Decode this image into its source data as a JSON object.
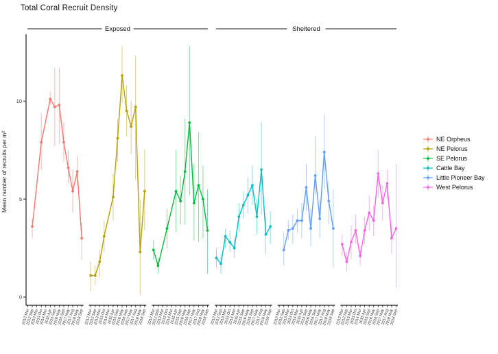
{
  "page": {
    "title": "Total Coral Recruit Density"
  },
  "chart_data": {
    "type": "line",
    "title": "Total Coral Recruit Density",
    "xlabel": "",
    "ylabel": "Mean number of recruits per m²",
    "ylim": [
      0,
      13.5
    ],
    "yticks": [
      0,
      5,
      10
    ],
    "grid": false,
    "error_bars": true,
    "x_tick_labels": [
      "2012 Mar",
      "2012 Sep",
      "2013 Mar",
      "2013 Oct",
      "2014 Mar",
      "2015 Apr",
      "2015 Sep",
      "2016 May",
      "2016 Sep",
      "2017 May",
      "2017 Aug",
      "2018 May",
      "2018 Sep"
    ],
    "facets": [
      {
        "label": "Exposed",
        "series_indexes": [
          0,
          1,
          2
        ]
      },
      {
        "label": "Sheltered",
        "series_indexes": [
          3,
          4,
          5
        ]
      }
    ],
    "legend": {
      "position": "right",
      "entries": [
        "NE Orpheus",
        "NE Pelorus",
        "SE Pelorus",
        "Cattle Bay",
        "Little Pioneer Bay",
        "West Pelorus"
      ]
    },
    "series": [
      {
        "name": "NE Orpheus",
        "color": "#F8766D",
        "facet": "Exposed",
        "points": [
          {
            "t": 1,
            "y": 3.6,
            "lo": 3.0,
            "hi": 4.0
          },
          {
            "t": 3,
            "y": 7.9,
            "lo": 6.5,
            "hi": 9.4
          },
          {
            "t": 5,
            "y": 10.1,
            "lo": 9.8,
            "hi": 10.5
          },
          {
            "t": 6,
            "y": 9.7,
            "lo": 7.7,
            "hi": 11.7
          },
          {
            "t": 7,
            "y": 9.8,
            "lo": 7.8,
            "hi": 11.7
          },
          {
            "t": 8,
            "y": 7.9,
            "lo": 6.9,
            "hi": 8.9
          },
          {
            "t": 9,
            "y": 6.6,
            "lo": 5.8,
            "hi": 7.5
          },
          {
            "t": 10,
            "y": 5.4,
            "lo": 4.3,
            "hi": 6.5
          },
          {
            "t": 11,
            "y": 6.4,
            "lo": 5.7,
            "hi": 7.2
          },
          {
            "t": 12,
            "y": 3.0,
            "lo": 1.9,
            "hi": 3.8
          }
        ]
      },
      {
        "name": "NE Pelorus",
        "color": "#B79F00",
        "facet": "Exposed",
        "points": [
          {
            "t": 0,
            "y": 1.1,
            "lo": 0.3,
            "hi": 1.8
          },
          {
            "t": 1,
            "y": 1.1,
            "lo": 0.6,
            "hi": 1.6
          },
          {
            "t": 2,
            "y": 1.8,
            "lo": 1.0,
            "hi": 2.4
          },
          {
            "t": 3,
            "y": 3.1,
            "lo": 2.3,
            "hi": 3.9
          },
          {
            "t": 5,
            "y": 5.1,
            "lo": 3.9,
            "hi": 6.3
          },
          {
            "t": 6,
            "y": 8.1,
            "lo": 6.9,
            "hi": 9.1
          },
          {
            "t": 7,
            "y": 11.3,
            "lo": 9.9,
            "hi": 12.8
          },
          {
            "t": 8,
            "y": 9.5,
            "lo": 8.2,
            "hi": 10.8
          },
          {
            "t": 9,
            "y": 8.7,
            "lo": 7.3,
            "hi": 10.0
          },
          {
            "t": 10,
            "y": 9.7,
            "lo": 6.0,
            "hi": 12.3
          },
          {
            "t": 11,
            "y": 2.3,
            "lo": 0.1,
            "hi": 5.0
          },
          {
            "t": 12,
            "y": 5.4,
            "lo": 3.4,
            "hi": 7.5
          }
        ]
      },
      {
        "name": "SE Pelorus",
        "color": "#00BA38",
        "facet": "Exposed",
        "points": [
          {
            "t": 0,
            "y": 2.4,
            "lo": 1.9,
            "hi": 2.9
          },
          {
            "t": 1,
            "y": 1.6,
            "lo": 1.2,
            "hi": 2.0
          },
          {
            "t": 3,
            "y": 3.5,
            "lo": 2.5,
            "hi": 4.5
          },
          {
            "t": 5,
            "y": 5.4,
            "lo": 3.3,
            "hi": 7.5
          },
          {
            "t": 6,
            "y": 4.9,
            "lo": 3.7,
            "hi": 6.2
          },
          {
            "t": 7,
            "y": 6.4,
            "lo": 3.7,
            "hi": 9.1
          },
          {
            "t": 8,
            "y": 8.9,
            "lo": 5.2,
            "hi": 12.8
          },
          {
            "t": 9,
            "y": 4.8,
            "lo": 2.9,
            "hi": 6.8
          },
          {
            "t": 10,
            "y": 5.7,
            "lo": 2.8,
            "hi": 8.4
          },
          {
            "t": 11,
            "y": 5.0,
            "lo": 3.0,
            "hi": 6.7
          },
          {
            "t": 12,
            "y": 3.4,
            "lo": 1.2,
            "hi": 5.5
          }
        ]
      },
      {
        "name": "Cattle Bay",
        "color": "#00BFC4",
        "facet": "Sheltered",
        "points": [
          {
            "t": 0,
            "y": 2.0,
            "lo": 1.5,
            "hi": 2.5
          },
          {
            "t": 1,
            "y": 1.7,
            "lo": 1.2,
            "hi": 2.2
          },
          {
            "t": 2,
            "y": 3.1,
            "lo": 2.5,
            "hi": 3.5
          },
          {
            "t": 3,
            "y": 2.8,
            "lo": 2.3,
            "hi": 3.4
          },
          {
            "t": 4,
            "y": 2.5,
            "lo": 2.0,
            "hi": 3.0
          },
          {
            "t": 5,
            "y": 4.1,
            "lo": 3.3,
            "hi": 4.8
          },
          {
            "t": 6,
            "y": 4.7,
            "lo": 4.0,
            "hi": 5.4
          },
          {
            "t": 7,
            "y": 5.2,
            "lo": 4.3,
            "hi": 6.1
          },
          {
            "t": 8,
            "y": 5.7,
            "lo": 4.7,
            "hi": 6.7
          },
          {
            "t": 9,
            "y": 4.1,
            "lo": 3.2,
            "hi": 5.0
          },
          {
            "t": 10,
            "y": 6.5,
            "lo": 4.2,
            "hi": 8.9
          },
          {
            "t": 11,
            "y": 3.2,
            "lo": 2.2,
            "hi": 4.1
          },
          {
            "t": 12,
            "y": 3.6,
            "lo": 2.7,
            "hi": 4.4
          }
        ]
      },
      {
        "name": "Little Pioneer Bay",
        "color": "#619CFF",
        "facet": "Sheltered",
        "points": [
          {
            "t": 1,
            "y": 2.4,
            "lo": 1.6,
            "hi": 3.3
          },
          {
            "t": 2,
            "y": 3.4,
            "lo": 2.9,
            "hi": 3.9
          },
          {
            "t": 3,
            "y": 3.5,
            "lo": 2.7,
            "hi": 4.2
          },
          {
            "t": 4,
            "y": 3.9,
            "lo": 3.3,
            "hi": 4.5
          },
          {
            "t": 5,
            "y": 3.9,
            "lo": 3.0,
            "hi": 4.8
          },
          {
            "t": 6,
            "y": 5.6,
            "lo": 4.4,
            "hi": 6.8
          },
          {
            "t": 7,
            "y": 3.5,
            "lo": 2.6,
            "hi": 4.5
          },
          {
            "t": 8,
            "y": 6.2,
            "lo": 5.2,
            "hi": 8.2
          },
          {
            "t": 9,
            "y": 4.0,
            "lo": 3.0,
            "hi": 5.0
          },
          {
            "t": 10,
            "y": 7.4,
            "lo": 5.5,
            "hi": 9.3
          },
          {
            "t": 11,
            "y": 4.9,
            "lo": 3.7,
            "hi": 5.9
          },
          {
            "t": 12,
            "y": 3.5,
            "lo": 1.5,
            "hi": 5.5
          }
        ]
      },
      {
        "name": "West Pelorus",
        "color": "#F564E3",
        "facet": "Sheltered",
        "points": [
          {
            "t": 0,
            "y": 2.7,
            "lo": 2.1,
            "hi": 3.2
          },
          {
            "t": 1,
            "y": 1.8,
            "lo": 1.3,
            "hi": 2.3
          },
          {
            "t": 2,
            "y": 2.8,
            "lo": 1.9,
            "hi": 3.7
          },
          {
            "t": 3,
            "y": 3.4,
            "lo": 2.7,
            "hi": 4.2
          },
          {
            "t": 4,
            "y": 2.1,
            "lo": 1.6,
            "hi": 2.6
          },
          {
            "t": 5,
            "y": 3.4,
            "lo": 2.7,
            "hi": 4.1
          },
          {
            "t": 6,
            "y": 4.3,
            "lo": 3.4,
            "hi": 5.2
          },
          {
            "t": 7,
            "y": 3.9,
            "lo": 3.1,
            "hi": 4.7
          },
          {
            "t": 8,
            "y": 6.3,
            "lo": 5.1,
            "hi": 7.5
          },
          {
            "t": 9,
            "y": 4.8,
            "lo": 3.9,
            "hi": 5.7
          },
          {
            "t": 10,
            "y": 5.8,
            "lo": 5.0,
            "hi": 6.5
          },
          {
            "t": 11,
            "y": 3.0,
            "lo": 2.2,
            "hi": 3.9
          },
          {
            "t": 12,
            "y": 3.5,
            "lo": 0.5,
            "hi": 6.8
          }
        ]
      }
    ]
  }
}
